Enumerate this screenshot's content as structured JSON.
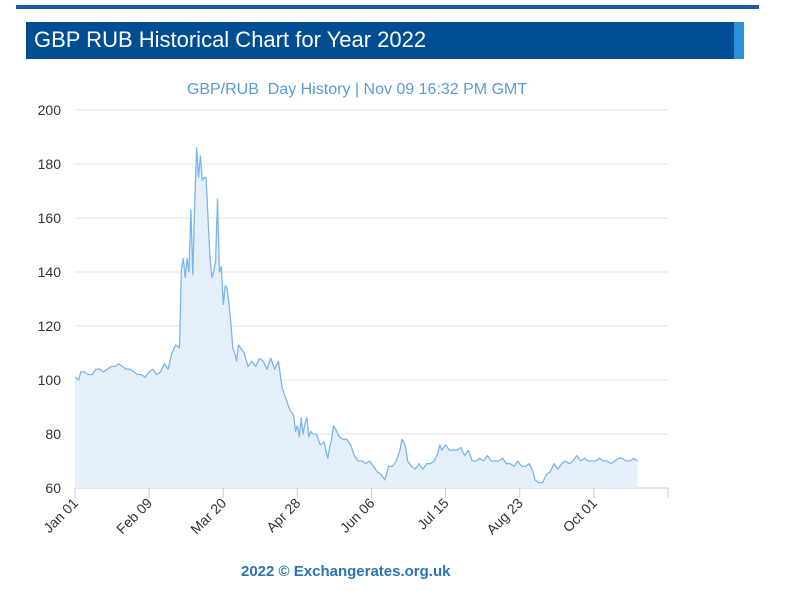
{
  "header": {
    "title": "GBP RUB Historical Chart for Year 2022",
    "accent_color": "#004d93",
    "tab_color": "#2c92d8"
  },
  "footer": {
    "copyright": "2022 © Exchangerates.org.uk"
  },
  "chart_data": {
    "type": "area",
    "title": "GBP/RUB  Day History | Nov 09 16:32 PM GMT",
    "xlabel": "",
    "ylabel": "",
    "ylim": [
      60,
      200
    ],
    "y_ticks": [
      60,
      80,
      100,
      120,
      140,
      160,
      180,
      200
    ],
    "x_ticks": [
      {
        "label": "Jan 01",
        "day": 1
      },
      {
        "label": "Feb 09",
        "day": 40
      },
      {
        "label": "Mar 20",
        "day": 79
      },
      {
        "label": "Apr 28",
        "day": 118
      },
      {
        "label": "Jun 06",
        "day": 157
      },
      {
        "label": "Jul 15",
        "day": 196
      },
      {
        "label": "Aug 23",
        "day": 235
      },
      {
        "label": "Oct 01",
        "day": 274
      }
    ],
    "x_range_days": [
      1,
      313
    ],
    "grid": true,
    "line_color": "#7cb5ec",
    "fill_color": "#e6f0fa",
    "series": [
      {
        "points": [
          [
            1,
            101
          ],
          [
            3,
            100
          ],
          [
            4,
            103
          ],
          [
            6,
            103
          ],
          [
            8,
            102
          ],
          [
            10,
            102
          ],
          [
            12,
            104
          ],
          [
            14,
            104
          ],
          [
            16,
            103
          ],
          [
            18,
            104
          ],
          [
            20,
            105
          ],
          [
            22,
            105
          ],
          [
            24,
            106
          ],
          [
            26,
            105
          ],
          [
            28,
            104
          ],
          [
            30,
            104
          ],
          [
            32,
            103
          ],
          [
            34,
            102
          ],
          [
            36,
            102
          ],
          [
            38,
            101
          ],
          [
            40,
            103
          ],
          [
            42,
            104
          ],
          [
            44,
            102
          ],
          [
            46,
            103
          ],
          [
            48,
            106
          ],
          [
            50,
            104
          ],
          [
            52,
            110
          ],
          [
            54,
            113
          ],
          [
            56,
            112
          ],
          [
            57,
            141
          ],
          [
            58,
            145
          ],
          [
            59,
            138
          ],
          [
            60,
            145
          ],
          [
            61,
            140
          ],
          [
            62,
            163
          ],
          [
            63,
            139
          ],
          [
            64,
            165
          ],
          [
            65,
            186
          ],
          [
            66,
            175
          ],
          [
            67,
            183
          ],
          [
            68,
            174
          ],
          [
            69,
            175
          ],
          [
            70,
            175
          ],
          [
            71,
            160
          ],
          [
            72,
            146
          ],
          [
            73,
            138
          ],
          [
            74,
            140
          ],
          [
            75,
            144
          ],
          [
            76,
            167
          ],
          [
            77,
            140
          ],
          [
            78,
            142
          ],
          [
            79,
            128
          ],
          [
            80,
            135
          ],
          [
            81,
            134
          ],
          [
            82,
            128
          ],
          [
            83,
            121
          ],
          [
            84,
            112
          ],
          [
            85,
            110
          ],
          [
            86,
            107
          ],
          [
            87,
            113
          ],
          [
            88,
            112
          ],
          [
            90,
            110
          ],
          [
            92,
            105
          ],
          [
            94,
            107
          ],
          [
            96,
            105
          ],
          [
            98,
            108
          ],
          [
            100,
            107
          ],
          [
            102,
            104
          ],
          [
            104,
            108
          ],
          [
            106,
            104
          ],
          [
            108,
            107
          ],
          [
            110,
            97
          ],
          [
            112,
            93
          ],
          [
            114,
            89
          ],
          [
            116,
            87
          ],
          [
            117,
            81
          ],
          [
            118,
            83
          ],
          [
            119,
            79
          ],
          [
            120,
            86
          ],
          [
            121,
            80
          ],
          [
            122,
            84
          ],
          [
            123,
            86
          ],
          [
            124,
            79
          ],
          [
            125,
            81
          ],
          [
            126,
            80
          ],
          [
            128,
            80
          ],
          [
            130,
            76
          ],
          [
            132,
            77
          ],
          [
            134,
            71
          ],
          [
            135,
            75
          ],
          [
            136,
            78
          ],
          [
            137,
            83
          ],
          [
            138,
            82
          ],
          [
            140,
            79
          ],
          [
            142,
            78
          ],
          [
            144,
            78
          ],
          [
            146,
            76
          ],
          [
            148,
            72
          ],
          [
            150,
            70
          ],
          [
            152,
            70
          ],
          [
            154,
            69
          ],
          [
            156,
            70
          ],
          [
            158,
            68
          ],
          [
            160,
            66
          ],
          [
            162,
            65
          ],
          [
            164,
            63
          ],
          [
            166,
            68
          ],
          [
            168,
            68
          ],
          [
            170,
            70
          ],
          [
            172,
            74
          ],
          [
            173,
            78
          ],
          [
            174,
            77
          ],
          [
            175,
            75
          ],
          [
            176,
            70
          ],
          [
            178,
            68
          ],
          [
            180,
            67
          ],
          [
            182,
            69
          ],
          [
            184,
            67
          ],
          [
            186,
            69
          ],
          [
            188,
            69
          ],
          [
            190,
            70
          ],
          [
            192,
            73
          ],
          [
            193,
            76
          ],
          [
            194,
            74
          ],
          [
            196,
            76
          ],
          [
            198,
            74
          ],
          [
            200,
            74
          ],
          [
            202,
            74
          ],
          [
            204,
            75
          ],
          [
            206,
            72
          ],
          [
            208,
            74
          ],
          [
            210,
            70
          ],
          [
            212,
            70
          ],
          [
            214,
            71
          ],
          [
            216,
            70
          ],
          [
            218,
            72
          ],
          [
            220,
            70
          ],
          [
            222,
            70
          ],
          [
            224,
            70
          ],
          [
            226,
            71
          ],
          [
            228,
            69
          ],
          [
            230,
            69
          ],
          [
            232,
            68
          ],
          [
            234,
            70
          ],
          [
            236,
            68
          ],
          [
            238,
            68
          ],
          [
            240,
            69
          ],
          [
            242,
            66
          ],
          [
            243,
            63
          ],
          [
            245,
            62
          ],
          [
            247,
            62
          ],
          [
            249,
            65
          ],
          [
            251,
            66
          ],
          [
            253,
            69
          ],
          [
            255,
            67
          ],
          [
            257,
            69
          ],
          [
            259,
            70
          ],
          [
            261,
            69
          ],
          [
            263,
            70
          ],
          [
            265,
            72
          ],
          [
            267,
            70
          ],
          [
            269,
            71
          ],
          [
            271,
            70
          ],
          [
            273,
            70
          ],
          [
            275,
            70
          ],
          [
            277,
            71
          ],
          [
            279,
            70
          ],
          [
            281,
            70
          ],
          [
            283,
            69
          ],
          [
            285,
            70
          ],
          [
            287,
            71
          ],
          [
            289,
            71
          ],
          [
            291,
            70
          ],
          [
            293,
            70
          ],
          [
            295,
            71
          ],
          [
            297,
            70
          ]
        ]
      }
    ]
  }
}
